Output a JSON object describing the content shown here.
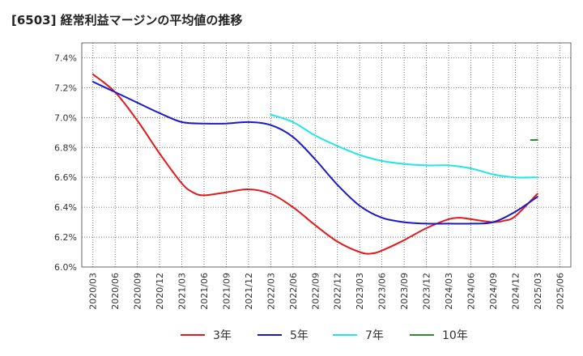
{
  "title": "[6503]  経常利益マージンの平均値の推移",
  "chart_data": {
    "type": "line",
    "title": "[6503]  経常利益マージンの平均値の推移",
    "xlabel": "",
    "ylabel": "",
    "ylim": [
      6.0,
      7.5
    ],
    "y_ticks": [
      "6.0%",
      "6.2%",
      "6.4%",
      "6.6%",
      "6.8%",
      "7.0%",
      "7.2%",
      "7.4%"
    ],
    "y_tick_values": [
      6.0,
      6.2,
      6.4,
      6.6,
      6.8,
      7.0,
      7.2,
      7.4
    ],
    "x_ticks": [
      "2020/03",
      "2020/06",
      "2020/09",
      "2020/12",
      "2021/03",
      "2021/06",
      "2021/09",
      "2021/12",
      "2022/03",
      "2022/06",
      "2022/09",
      "2022/12",
      "2023/03",
      "2023/06",
      "2023/09",
      "2023/12",
      "2024/03",
      "2024/06",
      "2024/09",
      "2024/12",
      "2025/03",
      "2025/06"
    ],
    "grid": true,
    "legend_position": "bottom",
    "series": [
      {
        "name": "3年",
        "color": "#e31a1c",
        "values": [
          [
            0,
            7.29
          ],
          [
            1,
            7.17
          ],
          [
            2,
            6.98
          ],
          [
            3,
            6.76
          ],
          [
            4,
            6.56
          ],
          [
            4.5,
            6.5
          ],
          [
            5,
            6.48
          ],
          [
            6,
            6.5
          ],
          [
            7,
            6.52
          ],
          [
            8,
            6.49
          ],
          [
            9,
            6.4
          ],
          [
            10,
            6.28
          ],
          [
            11,
            6.17
          ],
          [
            12,
            6.1
          ],
          [
            12.5,
            6.09
          ],
          [
            13,
            6.11
          ],
          [
            14,
            6.18
          ],
          [
            15,
            6.26
          ],
          [
            16,
            6.32
          ],
          [
            16.5,
            6.33
          ],
          [
            17,
            6.32
          ],
          [
            18,
            6.3
          ],
          [
            18.5,
            6.31
          ],
          [
            19,
            6.34
          ],
          [
            20,
            6.49
          ]
        ]
      },
      {
        "name": "5年",
        "color": "#1a1acc",
        "values": [
          [
            0,
            7.24
          ],
          [
            1,
            7.17
          ],
          [
            2,
            7.1
          ],
          [
            3,
            7.03
          ],
          [
            4,
            6.97
          ],
          [
            5,
            6.96
          ],
          [
            6,
            6.96
          ],
          [
            7,
            6.97
          ],
          [
            8,
            6.95
          ],
          [
            9,
            6.87
          ],
          [
            10,
            6.72
          ],
          [
            11,
            6.55
          ],
          [
            12,
            6.41
          ],
          [
            13,
            6.33
          ],
          [
            14,
            6.3
          ],
          [
            15,
            6.29
          ],
          [
            16,
            6.29
          ],
          [
            17,
            6.29
          ],
          [
            18,
            6.3
          ],
          [
            19,
            6.37
          ],
          [
            20,
            6.47
          ]
        ]
      },
      {
        "name": "7年",
        "color": "#22e5e5",
        "values": [
          [
            8,
            7.02
          ],
          [
            9,
            6.97
          ],
          [
            10,
            6.88
          ],
          [
            11,
            6.81
          ],
          [
            12,
            6.75
          ],
          [
            13,
            6.71
          ],
          [
            14,
            6.69
          ],
          [
            15,
            6.68
          ],
          [
            16,
            6.68
          ],
          [
            17,
            6.66
          ],
          [
            18,
            6.62
          ],
          [
            19,
            6.6
          ],
          [
            20,
            6.6
          ]
        ]
      },
      {
        "name": "10年",
        "color": "#2e8b2e",
        "values": [
          [
            19.7,
            6.85
          ],
          [
            20,
            6.85
          ]
        ]
      }
    ]
  }
}
